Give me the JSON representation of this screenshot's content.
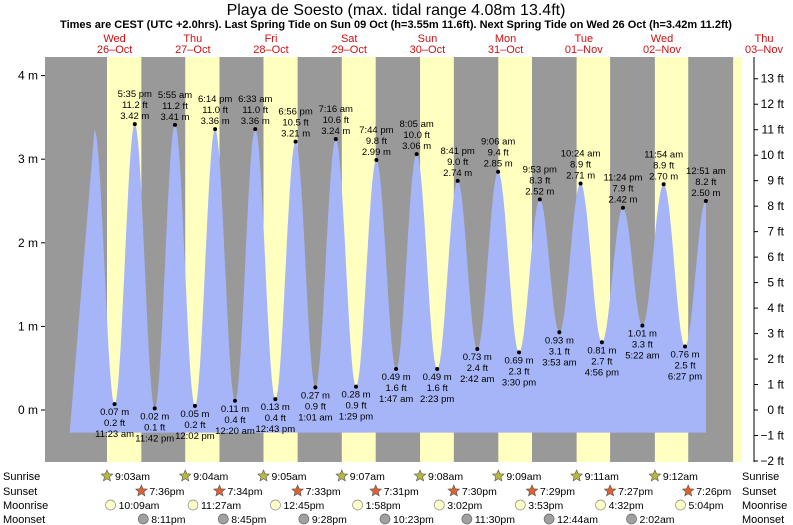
{
  "chart_data": {
    "type": "area",
    "title": "Playa de Soesto (max. tidal range 4.08m 13.4ft)",
    "subtitle": "Times are CEST (UTC +2.0hrs). Last Spring Tide on Sun 09 Oct (h=3.55m 11.6ft). Next Spring Tide on Wed 26 Oct (h=3.42m 11.2ft)",
    "ylim_m": [
      -0.3,
      4.15
    ],
    "ylim_ft": [
      -2,
      13.6
    ],
    "yticks_m": [
      {
        "v": 0,
        "label": "0 m"
      },
      {
        "v": 1,
        "label": "1 m"
      },
      {
        "v": 2,
        "label": "2 m"
      },
      {
        "v": 3,
        "label": "3 m"
      },
      {
        "v": 4,
        "label": "4 m"
      }
    ],
    "yticks_ft": [
      {
        "v": -2,
        "label": "−2 ft"
      },
      {
        "v": -1,
        "label": "−1 ft"
      },
      {
        "v": 0,
        "label": "0 ft"
      },
      {
        "v": 1,
        "label": "1 ft"
      },
      {
        "v": 2,
        "label": "2 ft"
      },
      {
        "v": 3,
        "label": "3 ft"
      },
      {
        "v": 4,
        "label": "4 ft"
      },
      {
        "v": 5,
        "label": "5 ft"
      },
      {
        "v": 6,
        "label": "6 ft"
      },
      {
        "v": 7,
        "label": "7 ft"
      },
      {
        "v": 8,
        "label": "8 ft"
      },
      {
        "v": 9,
        "label": "9 ft"
      },
      {
        "v": 10,
        "label": "10 ft"
      },
      {
        "v": 11,
        "label": "11 ft"
      },
      {
        "v": 12,
        "label": "12 ft"
      },
      {
        "v": 13,
        "label": "13 ft"
      }
    ],
    "days": [
      {
        "dow": "Wed",
        "date": "26–Oct"
      },
      {
        "dow": "Thu",
        "date": "27–Oct"
      },
      {
        "dow": "Fri",
        "date": "28–Oct"
      },
      {
        "dow": "Sat",
        "date": "29–Oct"
      },
      {
        "dow": "Sun",
        "date": "30–Oct"
      },
      {
        "dow": "Mon",
        "date": "31–Oct"
      },
      {
        "dow": "Tue",
        "date": "01–Nov"
      },
      {
        "dow": "Wed",
        "date": "02–Nov"
      },
      {
        "dow": "Thu",
        "date": "03–Nov"
      }
    ],
    "tides": [
      {
        "day": 0,
        "time": "5:35 pm",
        "h": 3.42,
        "ft": "11.2 ft",
        "m": "3.42 m",
        "type": "high"
      },
      {
        "day": 0,
        "time": "11:23 am",
        "h": 0.07,
        "ft": "0.2 ft",
        "m": "0.07 m",
        "type": "low"
      },
      {
        "day": 0,
        "time": "11:42 pm",
        "h": 0.02,
        "ft": "0.1 ft",
        "m": "0.02 m",
        "type": "low"
      },
      {
        "day": 1,
        "time": "5:55 am",
        "h": 3.41,
        "ft": "11.2 ft",
        "m": "3.41 m",
        "type": "high"
      },
      {
        "day": 1,
        "time": "12:02 pm",
        "h": 0.05,
        "ft": "0.2 ft",
        "m": "0.05 m",
        "type": "low"
      },
      {
        "day": 1,
        "time": "6:14 pm",
        "h": 3.36,
        "ft": "11.0 ft",
        "m": "3.36 m",
        "type": "high"
      },
      {
        "day": 2,
        "time": "12:20 am",
        "h": 0.11,
        "ft": "0.4 ft",
        "m": "0.11 m",
        "type": "low"
      },
      {
        "day": 2,
        "time": "6:33 am",
        "h": 3.36,
        "ft": "11.0 ft",
        "m": "3.36 m",
        "type": "high"
      },
      {
        "day": 2,
        "time": "12:43 pm",
        "h": 0.13,
        "ft": "0.4 ft",
        "m": "0.13 m",
        "type": "low"
      },
      {
        "day": 2,
        "time": "6:56 pm",
        "h": 3.21,
        "ft": "10.5 ft",
        "m": "3.21 m",
        "type": "high"
      },
      {
        "day": 3,
        "time": "1:01 am",
        "h": 0.27,
        "ft": "0.9 ft",
        "m": "0.27 m",
        "type": "low"
      },
      {
        "day": 3,
        "time": "7:16 am",
        "h": 3.24,
        "ft": "10.6 ft",
        "m": "3.24 m",
        "type": "high"
      },
      {
        "day": 3,
        "time": "1:29 pm",
        "h": 0.28,
        "ft": "0.9 ft",
        "m": "0.28 m",
        "type": "low"
      },
      {
        "day": 3,
        "time": "7:44 pm",
        "h": 2.99,
        "ft": "9.8 ft",
        "m": "2.99 m",
        "type": "high"
      },
      {
        "day": 4,
        "time": "1:47 am",
        "h": 0.49,
        "ft": "1.6 ft",
        "m": "0.49 m",
        "type": "low"
      },
      {
        "day": 4,
        "time": "8:05 am",
        "h": 3.06,
        "ft": "10.0 ft",
        "m": "3.06 m",
        "type": "high"
      },
      {
        "day": 4,
        "time": "2:23 pm",
        "h": 0.49,
        "ft": "1.6 ft",
        "m": "0.49 m",
        "type": "low"
      },
      {
        "day": 4,
        "time": "8:41 pm",
        "h": 2.74,
        "ft": "9.0 ft",
        "m": "2.74 m",
        "type": "high"
      },
      {
        "day": 5,
        "time": "2:42 am",
        "h": 0.73,
        "ft": "2.4 ft",
        "m": "0.73 m",
        "type": "low"
      },
      {
        "day": 5,
        "time": "9:06 am",
        "h": 2.85,
        "ft": "9.4 ft",
        "m": "2.85 m",
        "type": "high"
      },
      {
        "day": 5,
        "time": "3:30 pm",
        "h": 0.69,
        "ft": "2.3 ft",
        "m": "0.69 m",
        "type": "low"
      },
      {
        "day": 5,
        "time": "9:53 pm",
        "h": 2.52,
        "ft": "8.3 ft",
        "m": "2.52 m",
        "type": "high"
      },
      {
        "day": 6,
        "time": "3:53 am",
        "h": 0.93,
        "ft": "3.1 ft",
        "m": "0.93 m",
        "type": "low"
      },
      {
        "day": 6,
        "time": "10:24 am",
        "h": 2.71,
        "ft": "8.9 ft",
        "m": "2.71 m",
        "type": "high"
      },
      {
        "day": 6,
        "time": "4:56 pm",
        "h": 0.81,
        "ft": "2.7 ft",
        "m": "0.81 m",
        "type": "low"
      },
      {
        "day": 6,
        "time": "11:24 pm",
        "h": 2.42,
        "ft": "7.9 ft",
        "m": "2.42 m",
        "type": "high"
      },
      {
        "day": 7,
        "time": "5:22 am",
        "h": 1.01,
        "ft": "3.3 ft",
        "m": "1.01 m",
        "type": "low"
      },
      {
        "day": 7,
        "time": "11:54 am",
        "h": 2.7,
        "ft": "8.9 ft",
        "m": "2.70 m",
        "type": "high"
      },
      {
        "day": 7,
        "time": "6:27 pm",
        "h": 0.76,
        "ft": "2.5 ft",
        "m": "0.76 m",
        "type": "low"
      },
      {
        "day": 8,
        "time": "12:51 am",
        "h": 2.5,
        "ft": "8.2 ft",
        "m": "2.50 m",
        "type": "high"
      }
    ],
    "sun_moon": {
      "labels": {
        "sunrise": "Sunrise",
        "sunset": "Sunset",
        "moonrise": "Moonrise",
        "moonset": "Moonset"
      },
      "sunrise": [
        "9:03am",
        "9:04am",
        "9:05am",
        "9:07am",
        "9:08am",
        "9:09am",
        "9:11am",
        "9:12am"
      ],
      "sunset": [
        "7:36pm",
        "7:34pm",
        "7:33pm",
        "7:31pm",
        "7:30pm",
        "7:29pm",
        "7:27pm",
        "7:26pm"
      ],
      "moonrise": [
        "10:09am",
        "11:27am",
        "12:45pm",
        "1:58pm",
        "3:02pm",
        "3:53pm",
        "4:32pm",
        "5:04pm"
      ],
      "moonset": [
        "8:11pm",
        "8:45pm",
        "9:28pm",
        "10:23pm",
        "11:30pm",
        "12:44am",
        "2:02am"
      ]
    },
    "colors": {
      "night": "#999999",
      "day": "#ffffc0",
      "water": "#a5b5f7",
      "day_label": "#d01010",
      "sunrise_star": "#b8b840",
      "sunset_star": "#e06030",
      "moonrise": "#ffffc8",
      "moonset": "#a0a0a0"
    }
  }
}
